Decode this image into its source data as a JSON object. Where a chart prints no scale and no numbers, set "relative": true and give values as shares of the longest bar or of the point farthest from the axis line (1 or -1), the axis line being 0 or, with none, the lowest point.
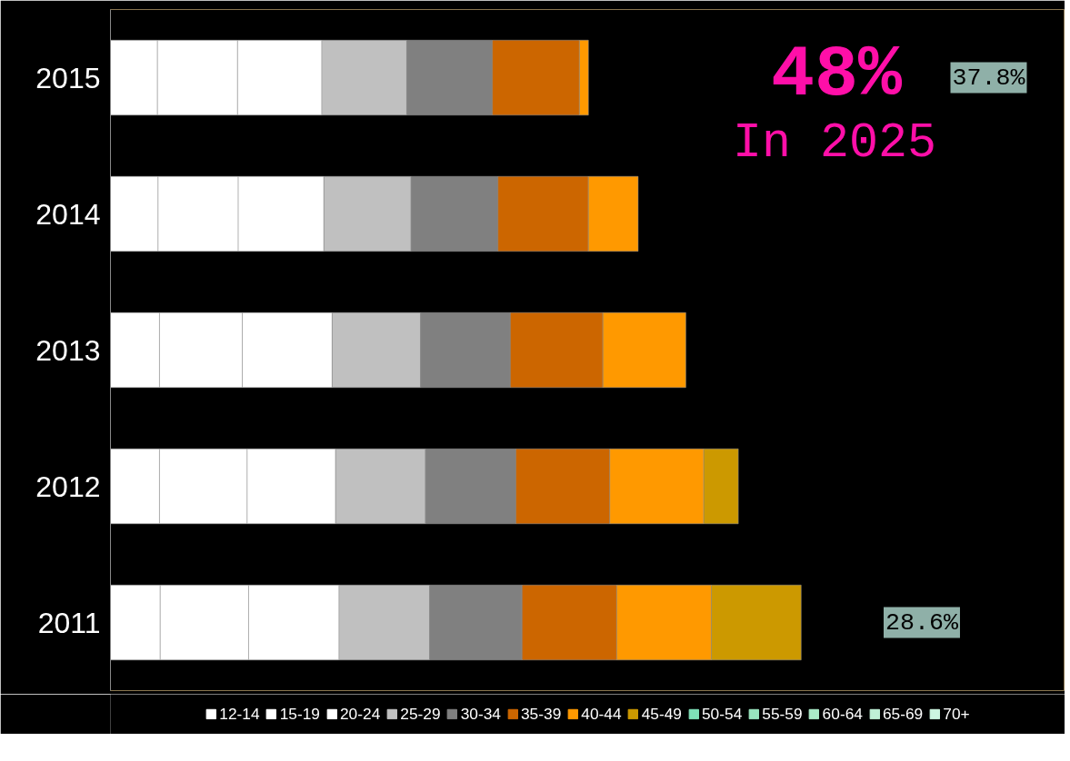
{
  "chart_data": {
    "type": "bar",
    "orientation": "horizontal",
    "stacked": true,
    "relative": true,
    "categories": [
      "2015",
      "2014",
      "2013",
      "2012",
      "2011"
    ],
    "series": [
      {
        "name": "12-14",
        "color": "#ffffff",
        "values": [
          0.068,
          0.069,
          0.071,
          0.071,
          0.072
        ]
      },
      {
        "name": "15-19",
        "color": "#ffffff",
        "values": [
          0.116,
          0.116,
          0.12,
          0.127,
          0.128
        ]
      },
      {
        "name": "20-24",
        "color": "#ffffff",
        "values": [
          0.122,
          0.124,
          0.13,
          0.128,
          0.131
        ]
      },
      {
        "name": "25-29",
        "color": "#c0c0c0",
        "values": [
          0.123,
          0.126,
          0.128,
          0.13,
          0.131
        ]
      },
      {
        "name": "30-34",
        "color": "#808080",
        "values": [
          0.124,
          0.126,
          0.13,
          0.131,
          0.134
        ]
      },
      {
        "name": "35-39",
        "color": "#cc6600",
        "values": [
          0.126,
          0.131,
          0.134,
          0.136,
          0.137
        ]
      },
      {
        "name": "40-44",
        "color": "#ff9900",
        "values": [
          0.013,
          0.072,
          0.12,
          0.136,
          0.137
        ]
      },
      {
        "name": "45-49",
        "color": "#cc9900",
        "values": [
          null,
          null,
          null,
          0.05,
          0.13
        ]
      },
      {
        "name": "50-54",
        "color": "#7fe0b8",
        "values": [
          null,
          null,
          null,
          null,
          null
        ]
      },
      {
        "name": "55-59",
        "color": "#99e6bf",
        "values": [
          null,
          null,
          null,
          null,
          null
        ]
      },
      {
        "name": "60-64",
        "color": "#aaebc8",
        "values": [
          null,
          null,
          null,
          null,
          null
        ]
      },
      {
        "name": "65-69",
        "color": "#bff0d6",
        "values": [
          null,
          null,
          null,
          null,
          null
        ]
      },
      {
        "name": "70+",
        "color": "#ccf5e0",
        "values": [
          null,
          null,
          null,
          null,
          null
        ]
      }
    ],
    "annotations": [
      "37.8%",
      "48%",
      "In 2025",
      "28.6%"
    ],
    "legend": "bottom",
    "grid": false
  }
}
